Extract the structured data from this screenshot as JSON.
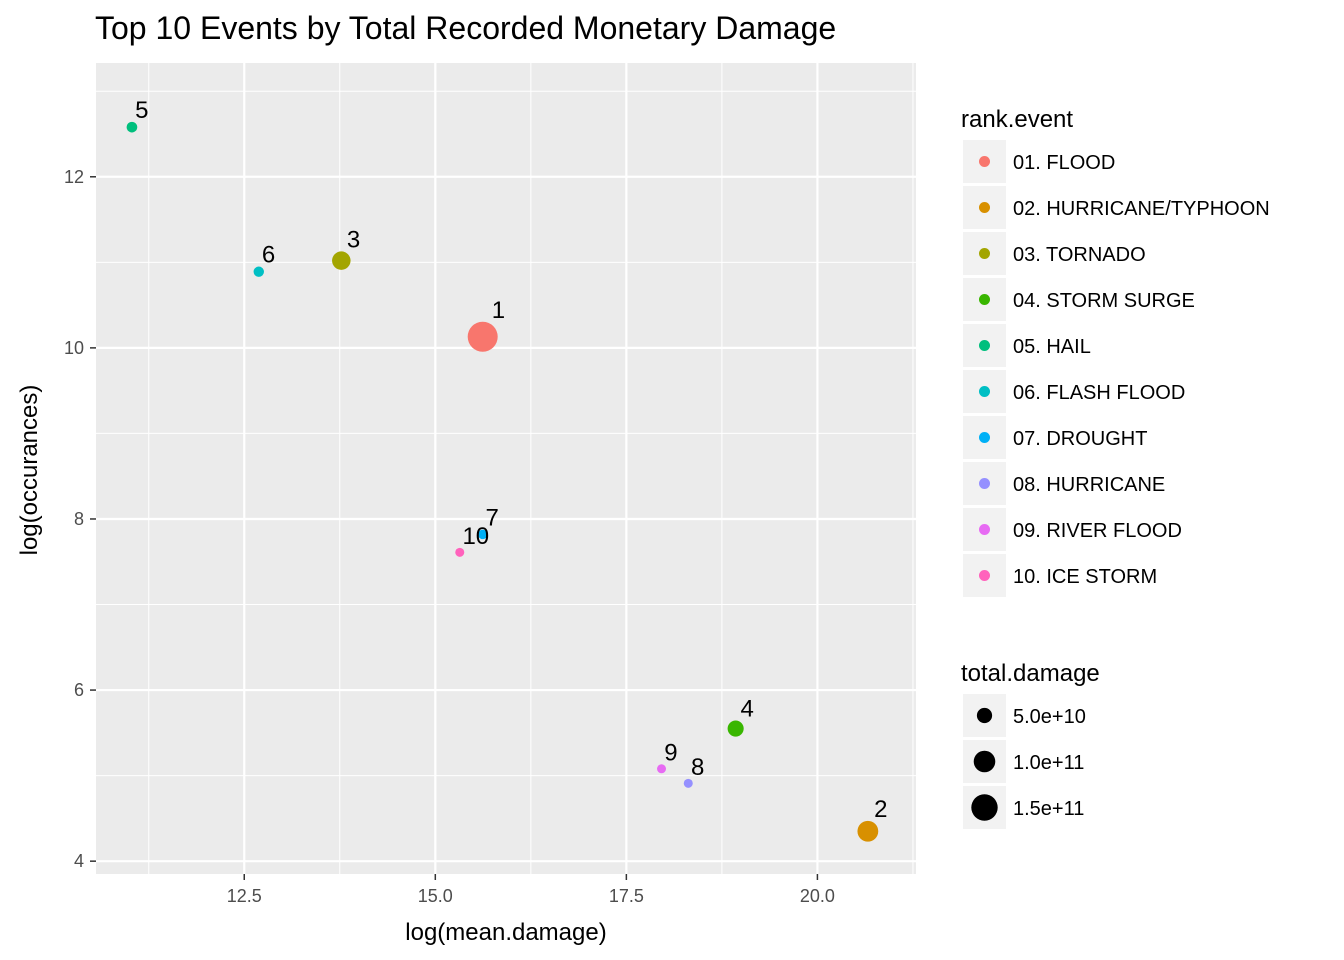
{
  "chart_data": {
    "type": "scatter",
    "title": "Top 10 Events by Total Recorded Monetary Damage",
    "xlabel": "log(mean.damage)",
    "ylabel": "log(occurances)",
    "xlim": [
      10.56,
      21.29
    ],
    "ylim": [
      3.85,
      13.33
    ],
    "x_ticks": [
      12.5,
      15.0,
      17.5,
      20.0
    ],
    "x_tick_labels": [
      "12.5",
      "15.0",
      "17.5",
      "20.0"
    ],
    "y_ticks": [
      4,
      6,
      8,
      10,
      12
    ],
    "y_tick_labels": [
      "4",
      "6",
      "8",
      "10",
      "12"
    ],
    "grid": true,
    "legend_position": "right",
    "points": [
      {
        "rank": "1",
        "event": "01. FLOOD",
        "x": 15.62,
        "y": 10.13,
        "total_damage": 150000000000.0,
        "color": "#F8766D"
      },
      {
        "rank": "2",
        "event": "02. HURRICANE/TYPHOON",
        "x": 20.66,
        "y": 4.35,
        "total_damage": 72000000000.0,
        "color": "#D89000"
      },
      {
        "rank": "3",
        "event": "03. TORNADO",
        "x": 13.77,
        "y": 11.02,
        "total_damage": 57000000000.0,
        "color": "#A3A500"
      },
      {
        "rank": "4",
        "event": "04. STORM SURGE",
        "x": 18.93,
        "y": 5.55,
        "total_damage": 43000000000.0,
        "color": "#39B600"
      },
      {
        "rank": "5",
        "event": "05. HAIL",
        "x": 11.03,
        "y": 12.58,
        "total_damage": 19000000000.0,
        "color": "#00BF7D"
      },
      {
        "rank": "6",
        "event": "06. FLASH FLOOD",
        "x": 12.69,
        "y": 10.89,
        "total_damage": 18000000000.0,
        "color": "#00BFC4"
      },
      {
        "rank": "7",
        "event": "07. DROUGHT",
        "x": 15.62,
        "y": 7.82,
        "total_damage": 15000000000.0,
        "color": "#00B0F6"
      },
      {
        "rank": "8",
        "event": "08. HURRICANE",
        "x": 18.31,
        "y": 4.91,
        "total_damage": 12000000000.0,
        "color": "#9590FF"
      },
      {
        "rank": "9",
        "event": "09. RIVER FLOOD",
        "x": 17.96,
        "y": 5.08,
        "total_damage": 10000000000.0,
        "color": "#E76BF3"
      },
      {
        "rank": "10",
        "event": "10. ICE STORM",
        "x": 15.32,
        "y": 7.61,
        "total_damage": 9000000000.0,
        "color": "#FF62BC"
      }
    ],
    "legend_color": {
      "title": "rank.event",
      "entries": [
        {
          "label": "01. FLOOD",
          "color": "#F8766D"
        },
        {
          "label": "02. HURRICANE/TYPHOON",
          "color": "#D89000"
        },
        {
          "label": "03. TORNADO",
          "color": "#A3A500"
        },
        {
          "label": "04. STORM SURGE",
          "color": "#39B600"
        },
        {
          "label": "05. HAIL",
          "color": "#00BF7D"
        },
        {
          "label": "06. FLASH FLOOD",
          "color": "#00BFC4"
        },
        {
          "label": "07. DROUGHT",
          "color": "#00B0F6"
        },
        {
          "label": "08. HURRICANE",
          "color": "#9590FF"
        },
        {
          "label": "09. RIVER FLOOD",
          "color": "#E76BF3"
        },
        {
          "label": "10. ICE STORM",
          "color": "#FF62BC"
        }
      ]
    },
    "legend_size": {
      "title": "total.damage",
      "entries": [
        {
          "label": "5.0e+10",
          "value": 50000000000.0
        },
        {
          "label": "1.0e+11",
          "value": 100000000000.0
        },
        {
          "label": "1.5e+11",
          "value": 150000000000.0
        }
      ]
    },
    "colors": {
      "panel_background": "#EBEBEB",
      "grid_major": "#FFFFFF",
      "legend_key_background": "#F2F2F2",
      "size_key_point": "#000000"
    }
  }
}
